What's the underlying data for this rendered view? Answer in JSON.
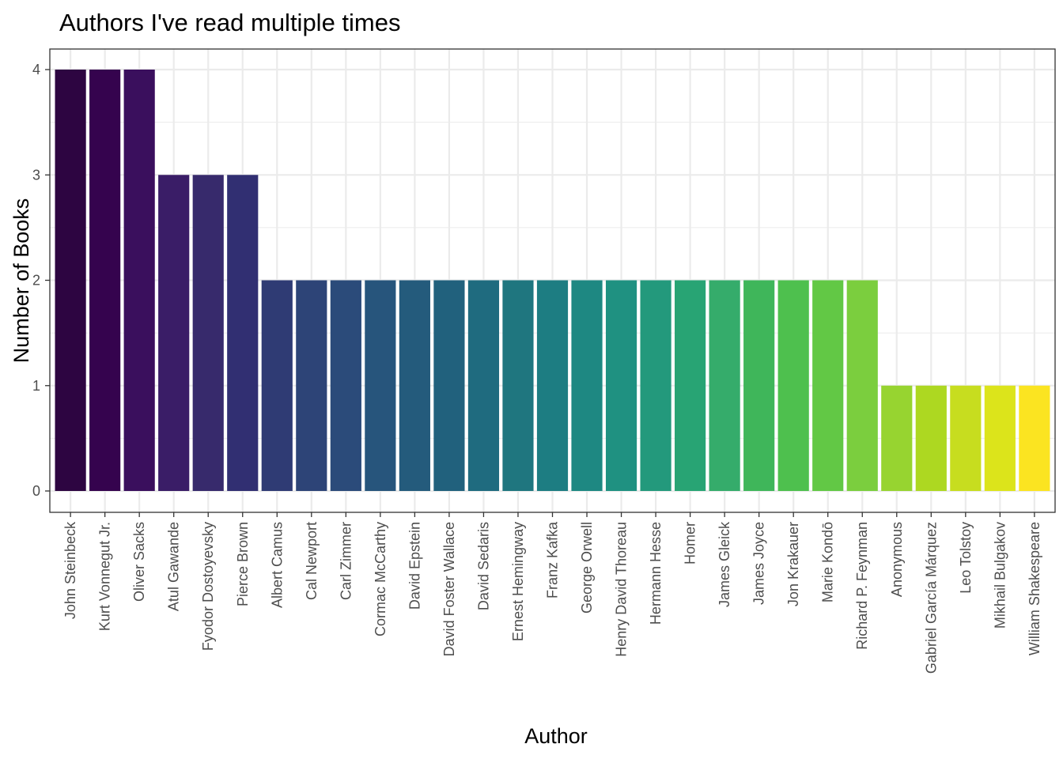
{
  "chart_data": {
    "type": "bar",
    "title": "Authors I've read multiple times",
    "xlabel": "Author",
    "ylabel": "Number of Books",
    "ylim": [
      0,
      4
    ],
    "yticks": [
      0,
      1,
      2,
      3,
      4
    ],
    "grid": true,
    "legend": "none",
    "categories": [
      "John Steinbeck",
      "Kurt Vonnegut Jr.",
      "Oliver Sacks",
      "Atul Gawande",
      "Fyodor Dostoyevsky",
      "Pierce Brown",
      "Albert Camus",
      "Cal Newport",
      "Carl Zimmer",
      "Cormac McCarthy",
      "David   Epstein",
      "David Foster Wallace",
      "David Sedaris",
      "Ernest Hemingway",
      "Franz Kafka",
      "George Orwell",
      "Henry David Thoreau",
      "Hermann Hesse",
      "Homer",
      "James Gleick",
      "James  Joyce",
      "Jon Krakauer",
      "Marie Kondō",
      "Richard P. Feynman",
      "Anonymous",
      "Gabriel García Márquez",
      "Leo Tolstoy",
      "Mikhail Bulgakov",
      "William Shakespeare"
    ],
    "values": [
      4,
      4,
      4,
      3,
      3,
      3,
      2,
      2,
      2,
      2,
      2,
      2,
      2,
      2,
      2,
      2,
      2,
      2,
      2,
      2,
      2,
      2,
      2,
      2,
      1,
      1,
      1,
      1,
      1
    ],
    "colors": [
      "#2D0541",
      "#35034E",
      "#3A0F5D",
      "#3A1D67",
      "#372A6C",
      "#312F72",
      "#2F3B74",
      "#2D4477",
      "#2B4B7A",
      "#27557C",
      "#245B7C",
      "#21617D",
      "#1F6B7F",
      "#1F767F",
      "#1D7D82",
      "#1E8882",
      "#1F9181",
      "#23997C",
      "#28A474",
      "#35AC6B",
      "#3FB65A",
      "#4EC04E",
      "#62C845",
      "#7BCE3E",
      "#97D430",
      "#ADD821",
      "#C7DD1F",
      "#DCE41B",
      "#FBE421"
    ]
  }
}
